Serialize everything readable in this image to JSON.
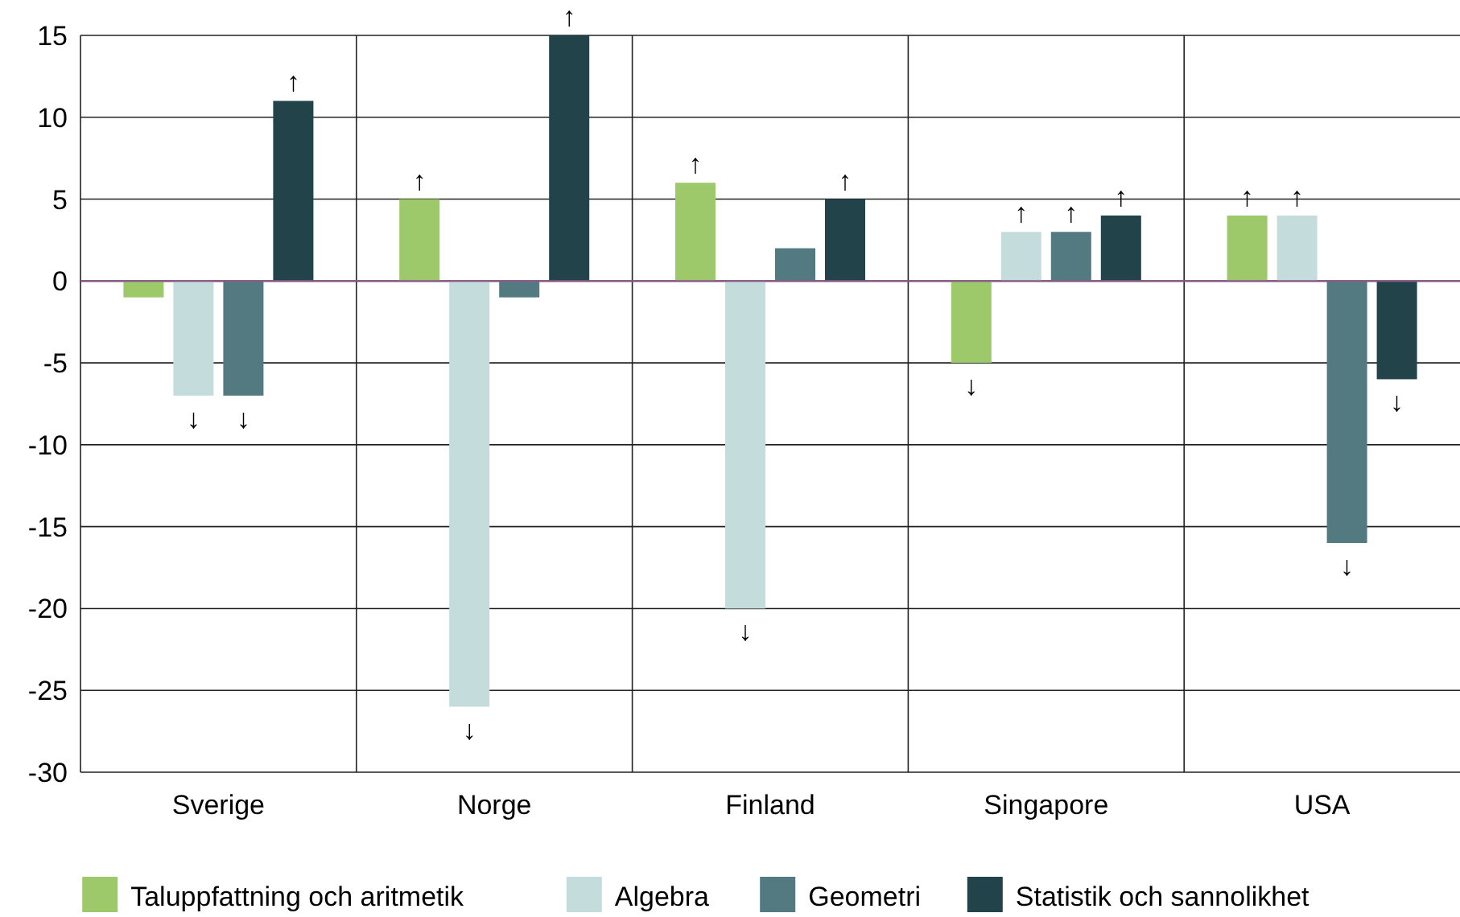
{
  "chart_data": {
    "type": "bar",
    "categories": [
      "Sverige",
      "Norge",
      "Finland",
      "Singapore",
      "USA"
    ],
    "series": [
      {
        "name": "Taluppfattning och aritmetik",
        "color": "#9dc96b",
        "values": [
          -1,
          5,
          6,
          -5,
          4
        ],
        "value_labels": [
          null,
          "↑",
          "↑",
          "↓",
          "↑"
        ]
      },
      {
        "name": "Algebra",
        "color": "#c5dcdc",
        "values": [
          -7,
          -26,
          -20,
          3,
          4
        ],
        "value_labels": [
          "↓",
          "↓",
          "↓",
          "↑",
          "↑"
        ]
      },
      {
        "name": "Geometri",
        "color": "#527a80",
        "values": [
          -7,
          -1,
          2,
          3,
          -16
        ],
        "value_labels": [
          "↓",
          null,
          null,
          "↑",
          "↓"
        ]
      },
      {
        "name": "Statistik och sannolikhet",
        "color": "#22434a",
        "values": [
          11,
          15,
          5,
          4,
          -6
        ],
        "value_labels": [
          "↑",
          "↑",
          "↑",
          "↑",
          "↓"
        ]
      }
    ],
    "ylim": [
      -30,
      15
    ],
    "yticks": [
      -30,
      -25,
      -20,
      -15,
      -10,
      -5,
      0,
      5,
      10,
      15
    ],
    "grid": "y",
    "legend": "bottom",
    "ref_lines": [
      {
        "axis": "y",
        "value": 0,
        "color": "#8b5a8b"
      }
    ]
  }
}
